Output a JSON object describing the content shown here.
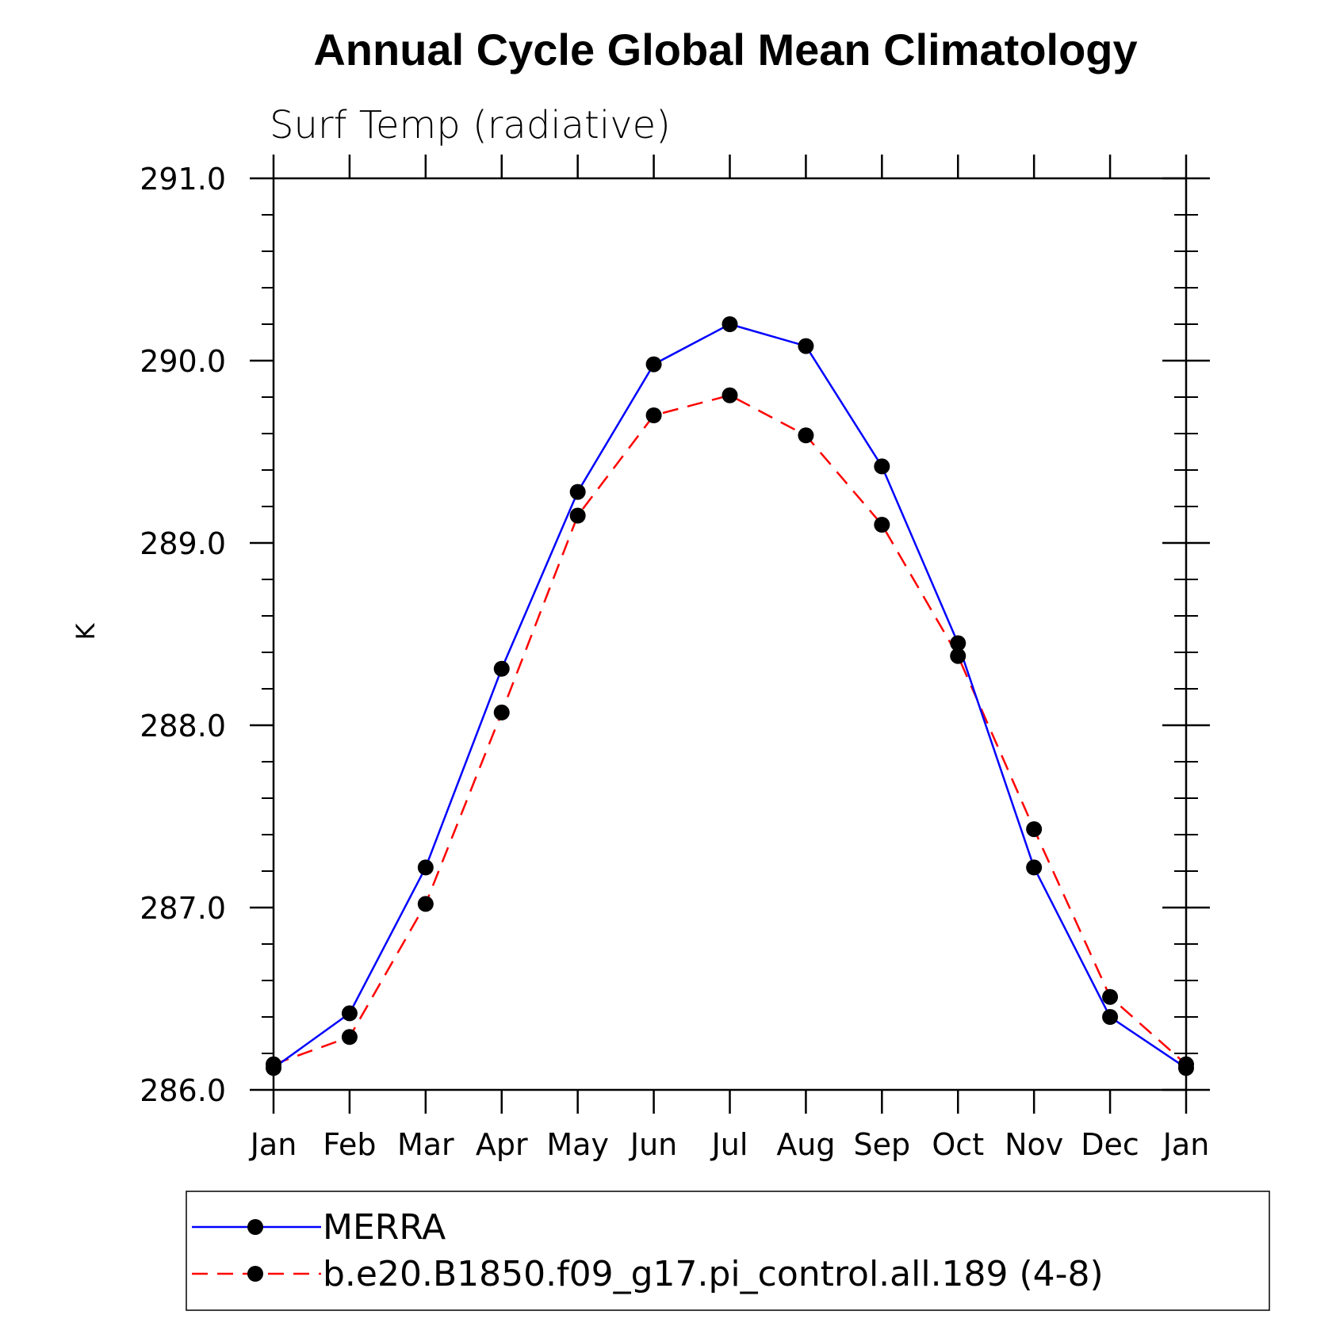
{
  "chart_data": {
    "type": "line",
    "title": "Annual Cycle Global Mean Climatology",
    "subtitle": "Surf Temp (radiative)",
    "xlabel": "",
    "ylabel": "K",
    "categories": [
      "Jan",
      "Feb",
      "Mar",
      "Apr",
      "May",
      "Jun",
      "Jul",
      "Aug",
      "Sep",
      "Oct",
      "Nov",
      "Dec",
      "Jan"
    ],
    "ylim": [
      286.0,
      291.0
    ],
    "yticks": [
      "286.0",
      "287.0",
      "288.0",
      "289.0",
      "290.0",
      "291.0"
    ],
    "yticks_values": [
      286.0,
      287.0,
      288.0,
      289.0,
      290.0,
      291.0
    ],
    "yminor_step": 0.2,
    "grid": false,
    "legend_position": "bottom",
    "series": [
      {
        "name": "MERRA",
        "color": "#0000ff",
        "dash": "solid",
        "marker": "filled-circle",
        "values": [
          286.12,
          286.42,
          287.22,
          288.31,
          289.28,
          289.98,
          290.2,
          290.08,
          289.42,
          288.45,
          287.22,
          286.4,
          286.12
        ]
      },
      {
        "name": "b.e20.B1850.f09_g17.pi_control.all.189 (4-8)",
        "color": "#ff0000",
        "dash": "dashed",
        "marker": "filled-circle",
        "values": [
          286.14,
          286.29,
          287.02,
          288.07,
          289.15,
          289.7,
          289.81,
          289.59,
          289.1,
          288.38,
          287.43,
          286.51,
          286.14
        ]
      }
    ]
  }
}
